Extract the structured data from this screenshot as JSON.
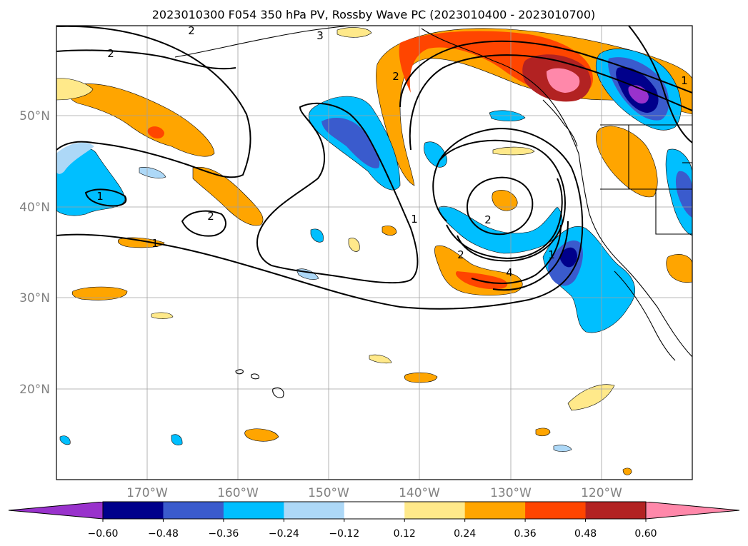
{
  "title": "2023010300 F054 350 hPa PV, Rossby Wave PC (2023010400 - 2023010700)",
  "map": {
    "lat_labels": [
      "50°N",
      "40°N",
      "30°N",
      "20°N"
    ],
    "lon_labels": [
      "170°W",
      "160°W",
      "150°W",
      "140°W",
      "130°W",
      "120°W"
    ],
    "contour_labels": [
      "2",
      "2",
      "3",
      "2",
      "1",
      "2",
      "1",
      "1",
      "2",
      "2",
      "4",
      "1",
      "1"
    ]
  },
  "colorbar": {
    "levels": [
      "−0.60",
      "−0.48",
      "−0.36",
      "−0.24",
      "−0.12",
      "0.12",
      "0.24",
      "0.36",
      "0.48",
      "0.60"
    ],
    "colors": [
      "#9932cc",
      "#00008b",
      "#3a5bcd",
      "#00bfff",
      "#add8f7",
      "#ffffff",
      "#ffe98a",
      "#ffa500",
      "#ff4500",
      "#b22222",
      "#ff88aa"
    ]
  }
}
